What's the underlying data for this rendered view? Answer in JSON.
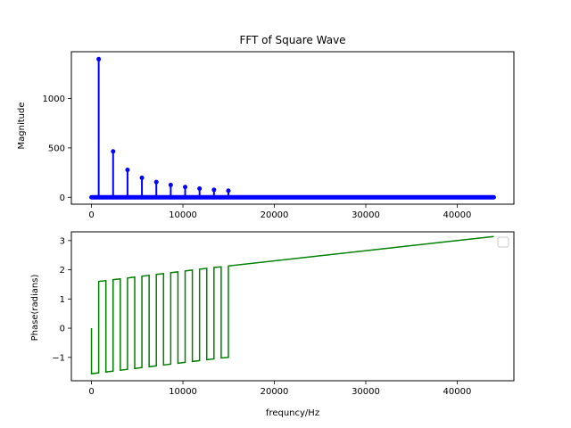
{
  "chart_data": [
    {
      "type": "line",
      "subtype": "stem",
      "title": "FFT of Square Wave",
      "xlabel": "",
      "ylabel": "Magnitude",
      "xlim": [
        -2200,
        46200
      ],
      "ylim": [
        -70,
        1475
      ],
      "xticks": [
        0,
        10000,
        20000,
        30000,
        40000
      ],
      "xtick_labels": [
        "0",
        "10000",
        "20000",
        "30000",
        "40000"
      ],
      "yticks": [
        0,
        500,
        1000
      ],
      "ytick_labels": [
        "0",
        "500",
        "1000"
      ],
      "grid": false,
      "color": "#0000ff",
      "series": [
        {
          "x": [
            0,
            788,
            2364,
            3940,
            5516,
            7092,
            8668,
            10244,
            11820,
            13396,
            14972,
            44000
          ],
          "y": [
            0,
            1400,
            465,
            278,
            198,
            155,
            125,
            104,
            88,
            76,
            67,
            0
          ]
        }
      ],
      "baseline_samples": {
        "x_start": 0,
        "x_end": 44000,
        "value": 0
      }
    },
    {
      "type": "line",
      "title": "",
      "xlabel": "frequncy/Hz",
      "ylabel": "Phase(radians)",
      "xlim": [
        -2200,
        46200
      ],
      "ylim": [
        -1.8,
        3.3
      ],
      "xticks": [
        0,
        10000,
        20000,
        30000,
        40000
      ],
      "xtick_labels": [
        "0",
        "10000",
        "20000",
        "30000",
        "40000"
      ],
      "yticks": [
        -1,
        0,
        1,
        2,
        3
      ],
      "ytick_labels": [
        "−1",
        "0",
        "1",
        "2",
        "3"
      ],
      "grid": false,
      "legend": "top-right",
      "color": "#008000",
      "series": [
        {
          "x": [
            0,
            0,
            788,
            788,
            1576,
            1576,
            2364,
            2364,
            3152,
            3152,
            3940,
            3940,
            4728,
            4728,
            5516,
            5516,
            6304,
            6304,
            7092,
            7092,
            7880,
            7880,
            8668,
            8668,
            9456,
            9456,
            10244,
            10244,
            11032,
            11032,
            11820,
            11820,
            12608,
            12608,
            13396,
            13396,
            14184,
            14184,
            14972,
            14972,
            44000
          ],
          "y": [
            0,
            -1.56,
            -1.53,
            1.6,
            1.63,
            -1.5,
            -1.47,
            1.66,
            1.69,
            -1.44,
            -1.41,
            1.72,
            1.75,
            -1.38,
            -1.35,
            1.78,
            1.81,
            -1.32,
            -1.29,
            1.84,
            1.87,
            -1.26,
            -1.23,
            1.9,
            1.93,
            -1.2,
            -1.17,
            1.96,
            1.99,
            -1.14,
            -1.11,
            2.02,
            2.05,
            -1.08,
            -1.05,
            2.08,
            2.1,
            -1.02,
            -1.0,
            2.13,
            3.14
          ]
        }
      ]
    }
  ]
}
